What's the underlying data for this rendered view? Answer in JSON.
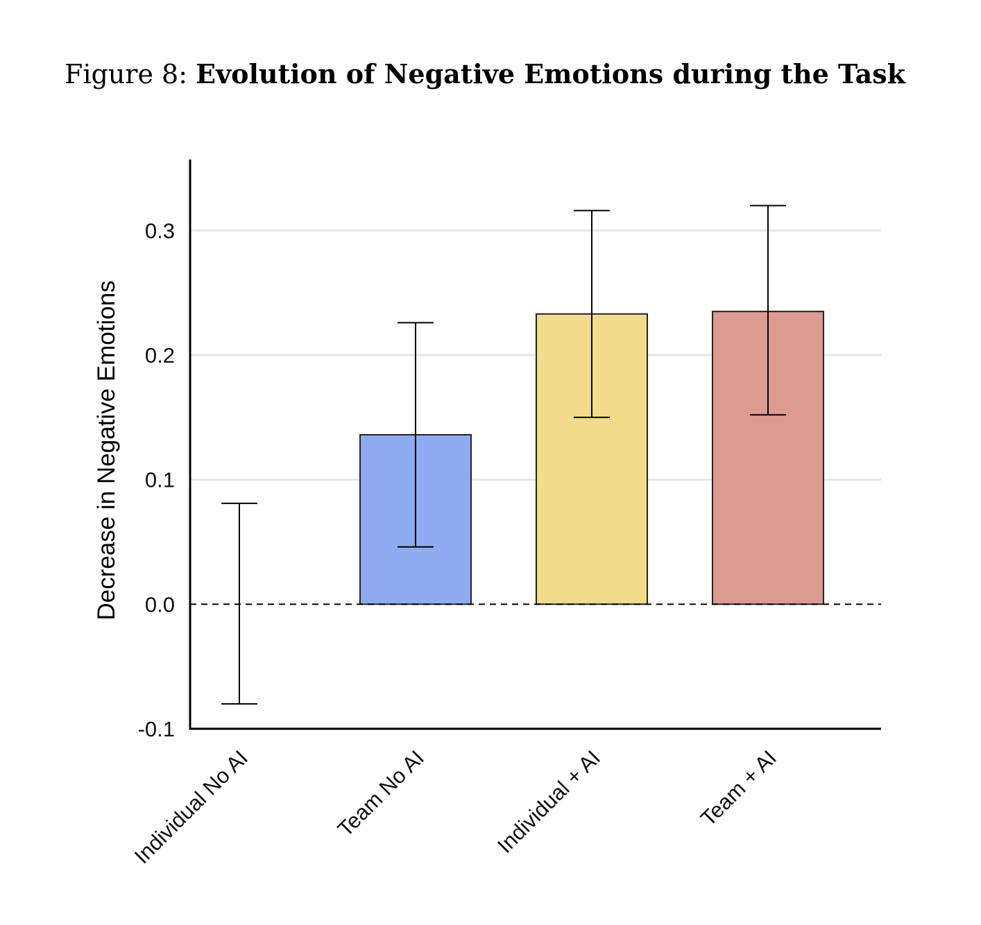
{
  "figure": {
    "label": "Figure 8:",
    "title": "Evolution of Negative Emotions during the Task"
  },
  "chart_data": {
    "type": "bar",
    "title": "Evolution of Negative Emotions during the Task",
    "xlabel": "",
    "ylabel": "Decrease in Negative Emotions",
    "ylim": [
      -0.1,
      0.357
    ],
    "yticks": [
      -0.1,
      0.0,
      0.1,
      0.2,
      0.3
    ],
    "ytick_labels": [
      "-0.1",
      "0.0",
      "0.1",
      "0.2",
      "0.3"
    ],
    "grid": "horizontal",
    "reference_line": 0.0,
    "categories": [
      "Individual No AI",
      "Team No AI",
      "Individual + AI",
      "Team + AI"
    ],
    "values": [
      0.0,
      0.136,
      0.233,
      0.235
    ],
    "error_low": [
      -0.08,
      0.046,
      0.15,
      0.152
    ],
    "error_high": [
      0.081,
      0.226,
      0.316,
      0.32
    ],
    "colors": [
      "#ffffff",
      "#8fabf2",
      "#f2db8a",
      "#dc9b91"
    ]
  }
}
